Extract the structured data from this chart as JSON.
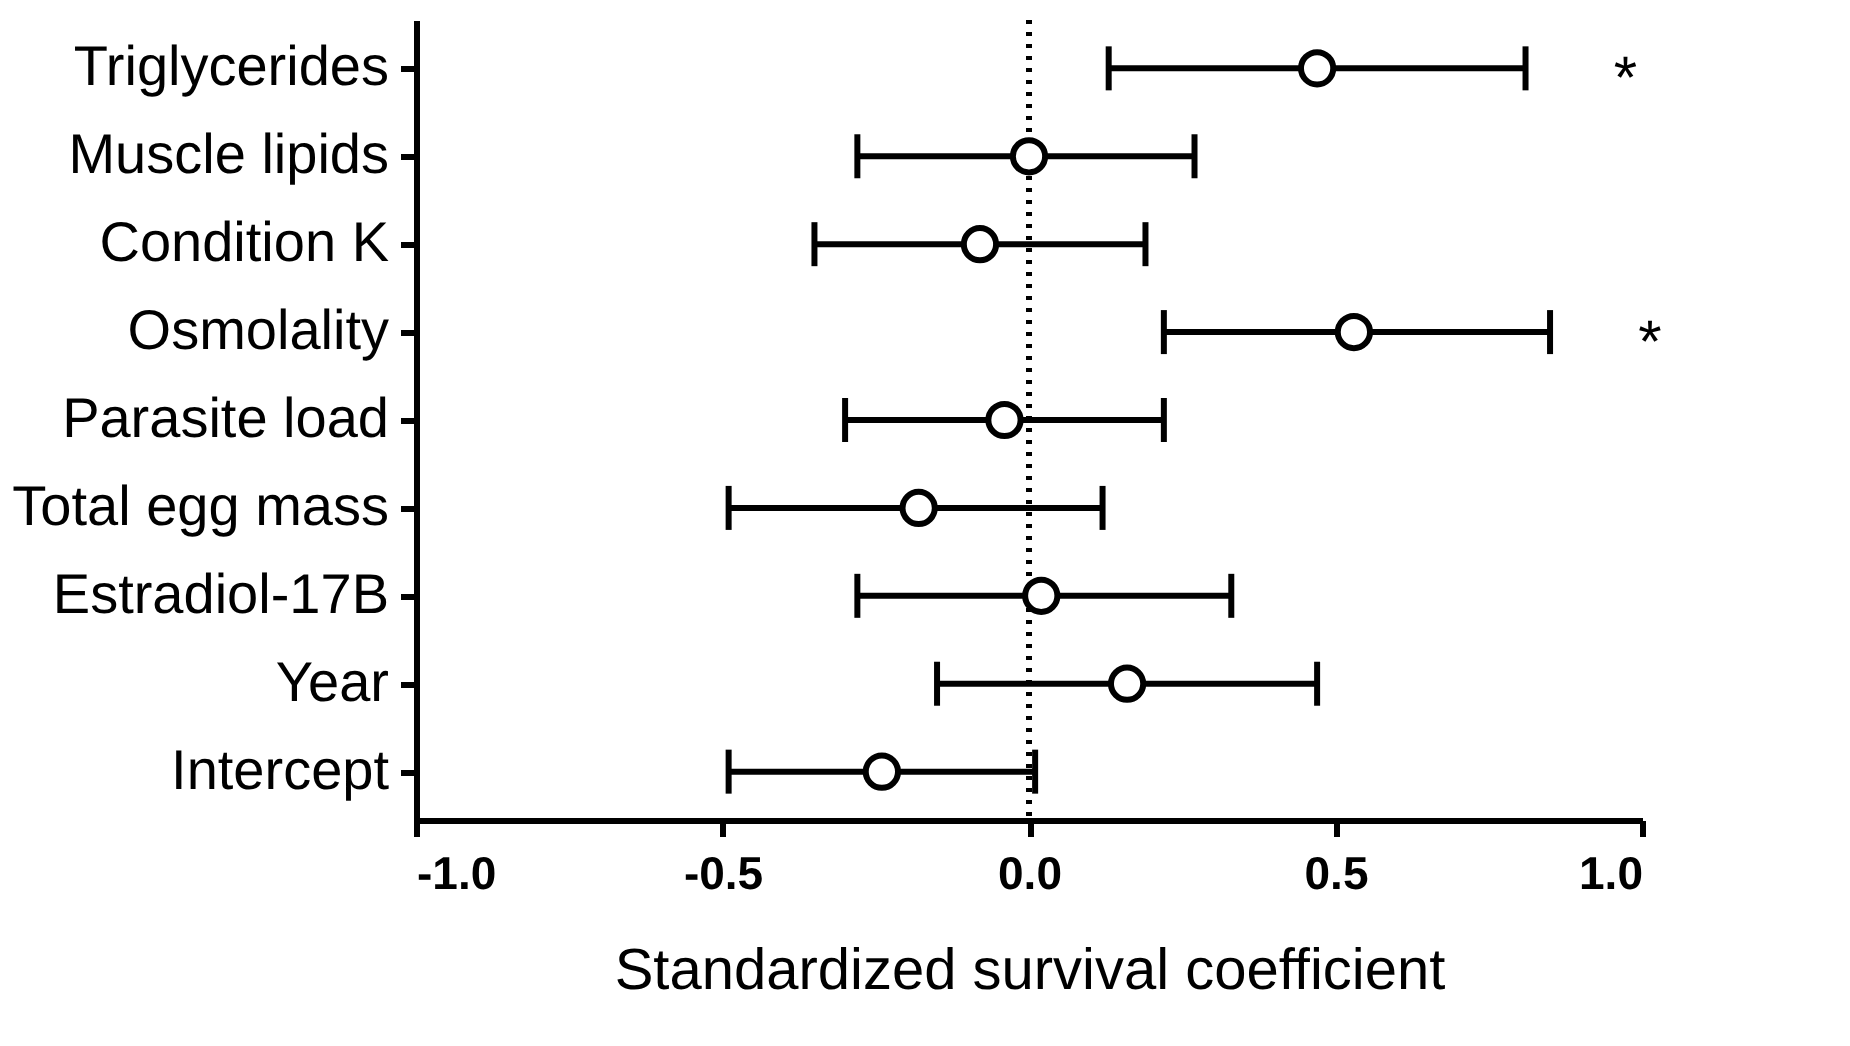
{
  "chart_data": {
    "type": "scatter",
    "orientation": "horizontal",
    "xlabel": "Standardized survival coefficient",
    "categories": [
      "Triglycerides",
      "Muscle lipids",
      "Condition K",
      "Osmolality",
      "Parasite load",
      "Total egg mass",
      "Estradiol-17B",
      "Year",
      "Intercept"
    ],
    "values": [
      0.47,
      0.0,
      -0.08,
      0.53,
      -0.04,
      -0.18,
      0.02,
      0.16,
      -0.24
    ],
    "errors": [
      [
        0.13,
        0.81
      ],
      [
        -0.28,
        0.27
      ],
      [
        -0.35,
        0.19
      ],
      [
        0.22,
        0.85
      ],
      [
        -0.3,
        0.22
      ],
      [
        -0.49,
        0.12
      ],
      [
        -0.28,
        0.33
      ],
      [
        -0.15,
        0.47
      ],
      [
        -0.49,
        0.01
      ]
    ],
    "color": "#000000",
    "marker": "circle",
    "grid": false,
    "xlim": [
      -1.0,
      1.0
    ],
    "xticks": [
      {
        "value": -1,
        "label": "-1.0"
      },
      {
        "value": -0.5,
        "label": "-0.5"
      },
      {
        "value": 0,
        "label": "0.0"
      },
      {
        "value": 0.5,
        "label": "0.5"
      },
      {
        "value": 1,
        "label": "1.0"
      }
    ],
    "ref_lines": [
      {
        "axis": "x",
        "value": 0,
        "line_style": "dotted"
      }
    ],
    "annotations": [
      {
        "text": "*",
        "x": 0.81,
        "y": "Triglycerides"
      },
      {
        "text": "*",
        "x": 0.85,
        "y": "Osmolality"
      }
    ]
  }
}
